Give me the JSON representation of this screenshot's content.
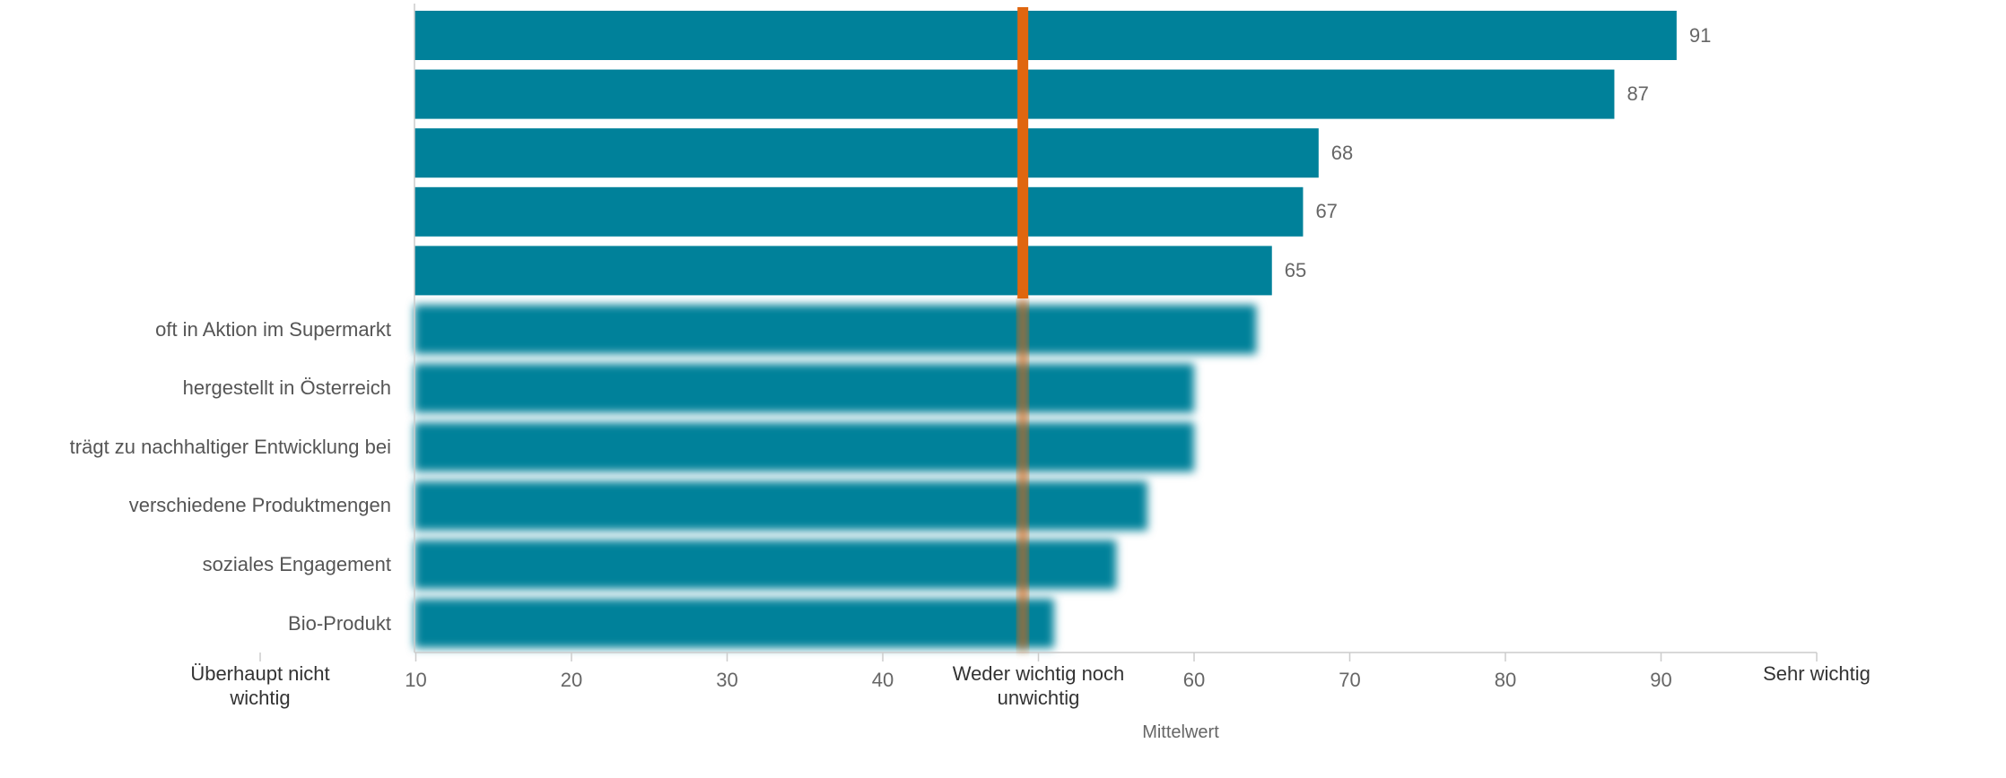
{
  "chart_data": {
    "type": "bar",
    "orientation": "horizontal",
    "categories": [
      "",
      "",
      "",
      "",
      "",
      "oft in Aktion im Supermarkt",
      "hergestellt in Österreich",
      "trägt zu nachhaltiger Entwicklung bei",
      "verschiedene Produktmengen",
      "soziales Engagement",
      "Bio-Produkt"
    ],
    "blurred_labels": [
      true,
      true,
      true,
      true,
      true,
      false,
      false,
      false,
      false,
      false,
      false
    ],
    "values": [
      91,
      87,
      68,
      67,
      65,
      64,
      60,
      60,
      57,
      55,
      51
    ],
    "value_labels": [
      "91",
      "87",
      "68",
      "67",
      "65",
      "",
      "",
      "",
      "",
      "",
      ""
    ],
    "blurred_bars": [
      false,
      false,
      false,
      false,
      false,
      true,
      true,
      true,
      true,
      true,
      true
    ],
    "xlim": [
      0,
      100
    ],
    "reference_line": 49,
    "xticks": [
      {
        "value": 0,
        "label": "Überhaupt nicht wichtig",
        "emphasis": true
      },
      {
        "value": 10,
        "label": "10"
      },
      {
        "value": 20,
        "label": "20"
      },
      {
        "value": 30,
        "label": "30"
      },
      {
        "value": 40,
        "label": "40"
      },
      {
        "value": 50,
        "label": "Weder wichtig noch unwichtig",
        "emphasis": true
      },
      {
        "value": 60,
        "label": "60"
      },
      {
        "value": 70,
        "label": "70"
      },
      {
        "value": 80,
        "label": "80"
      },
      {
        "value": 90,
        "label": "90"
      },
      {
        "value": 100,
        "label": "Sehr wichtig",
        "emphasis": true
      }
    ],
    "xlabel": "Mittelwert",
    "title": "",
    "colors": {
      "bar": "#00819a",
      "reference": "#e0660f",
      "axis": "#cccccc"
    }
  }
}
